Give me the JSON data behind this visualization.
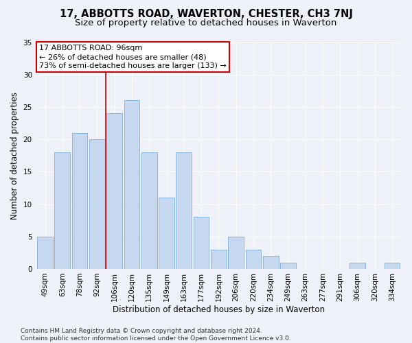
{
  "title": "17, ABBOTTS ROAD, WAVERTON, CHESTER, CH3 7NJ",
  "subtitle": "Size of property relative to detached houses in Waverton",
  "xlabel": "Distribution of detached houses by size in Waverton",
  "ylabel": "Number of detached properties",
  "categories": [
    "49sqm",
    "63sqm",
    "78sqm",
    "92sqm",
    "106sqm",
    "120sqm",
    "135sqm",
    "149sqm",
    "163sqm",
    "177sqm",
    "192sqm",
    "206sqm",
    "220sqm",
    "234sqm",
    "249sqm",
    "263sqm",
    "277sqm",
    "291sqm",
    "306sqm",
    "320sqm",
    "334sqm"
  ],
  "values": [
    5,
    18,
    21,
    20,
    24,
    26,
    18,
    11,
    18,
    8,
    3,
    5,
    3,
    2,
    1,
    0,
    0,
    0,
    1,
    0,
    1
  ],
  "bar_color": "#c5d8f0",
  "bar_edge_color": "#7aafda",
  "vline_x": 3.5,
  "vline_color": "#cc0000",
  "annotation_line1": "17 ABBOTTS ROAD: 96sqm",
  "annotation_line2": "← 26% of detached houses are smaller (48)",
  "annotation_line3": "73% of semi-detached houses are larger (133) →",
  "annotation_box_color": "#ffffff",
  "annotation_box_edge": "#cc0000",
  "ylim": [
    0,
    35
  ],
  "yticks": [
    0,
    5,
    10,
    15,
    20,
    25,
    30,
    35
  ],
  "footer": "Contains HM Land Registry data © Crown copyright and database right 2024.\nContains public sector information licensed under the Open Government Licence v3.0.",
  "bg_color": "#eef2f8",
  "grid_color": "#ffffff",
  "title_fontsize": 10.5,
  "subtitle_fontsize": 9.5,
  "axis_label_fontsize": 8.5,
  "tick_fontsize": 7.5,
  "annotation_fontsize": 8,
  "footer_fontsize": 6.5
}
